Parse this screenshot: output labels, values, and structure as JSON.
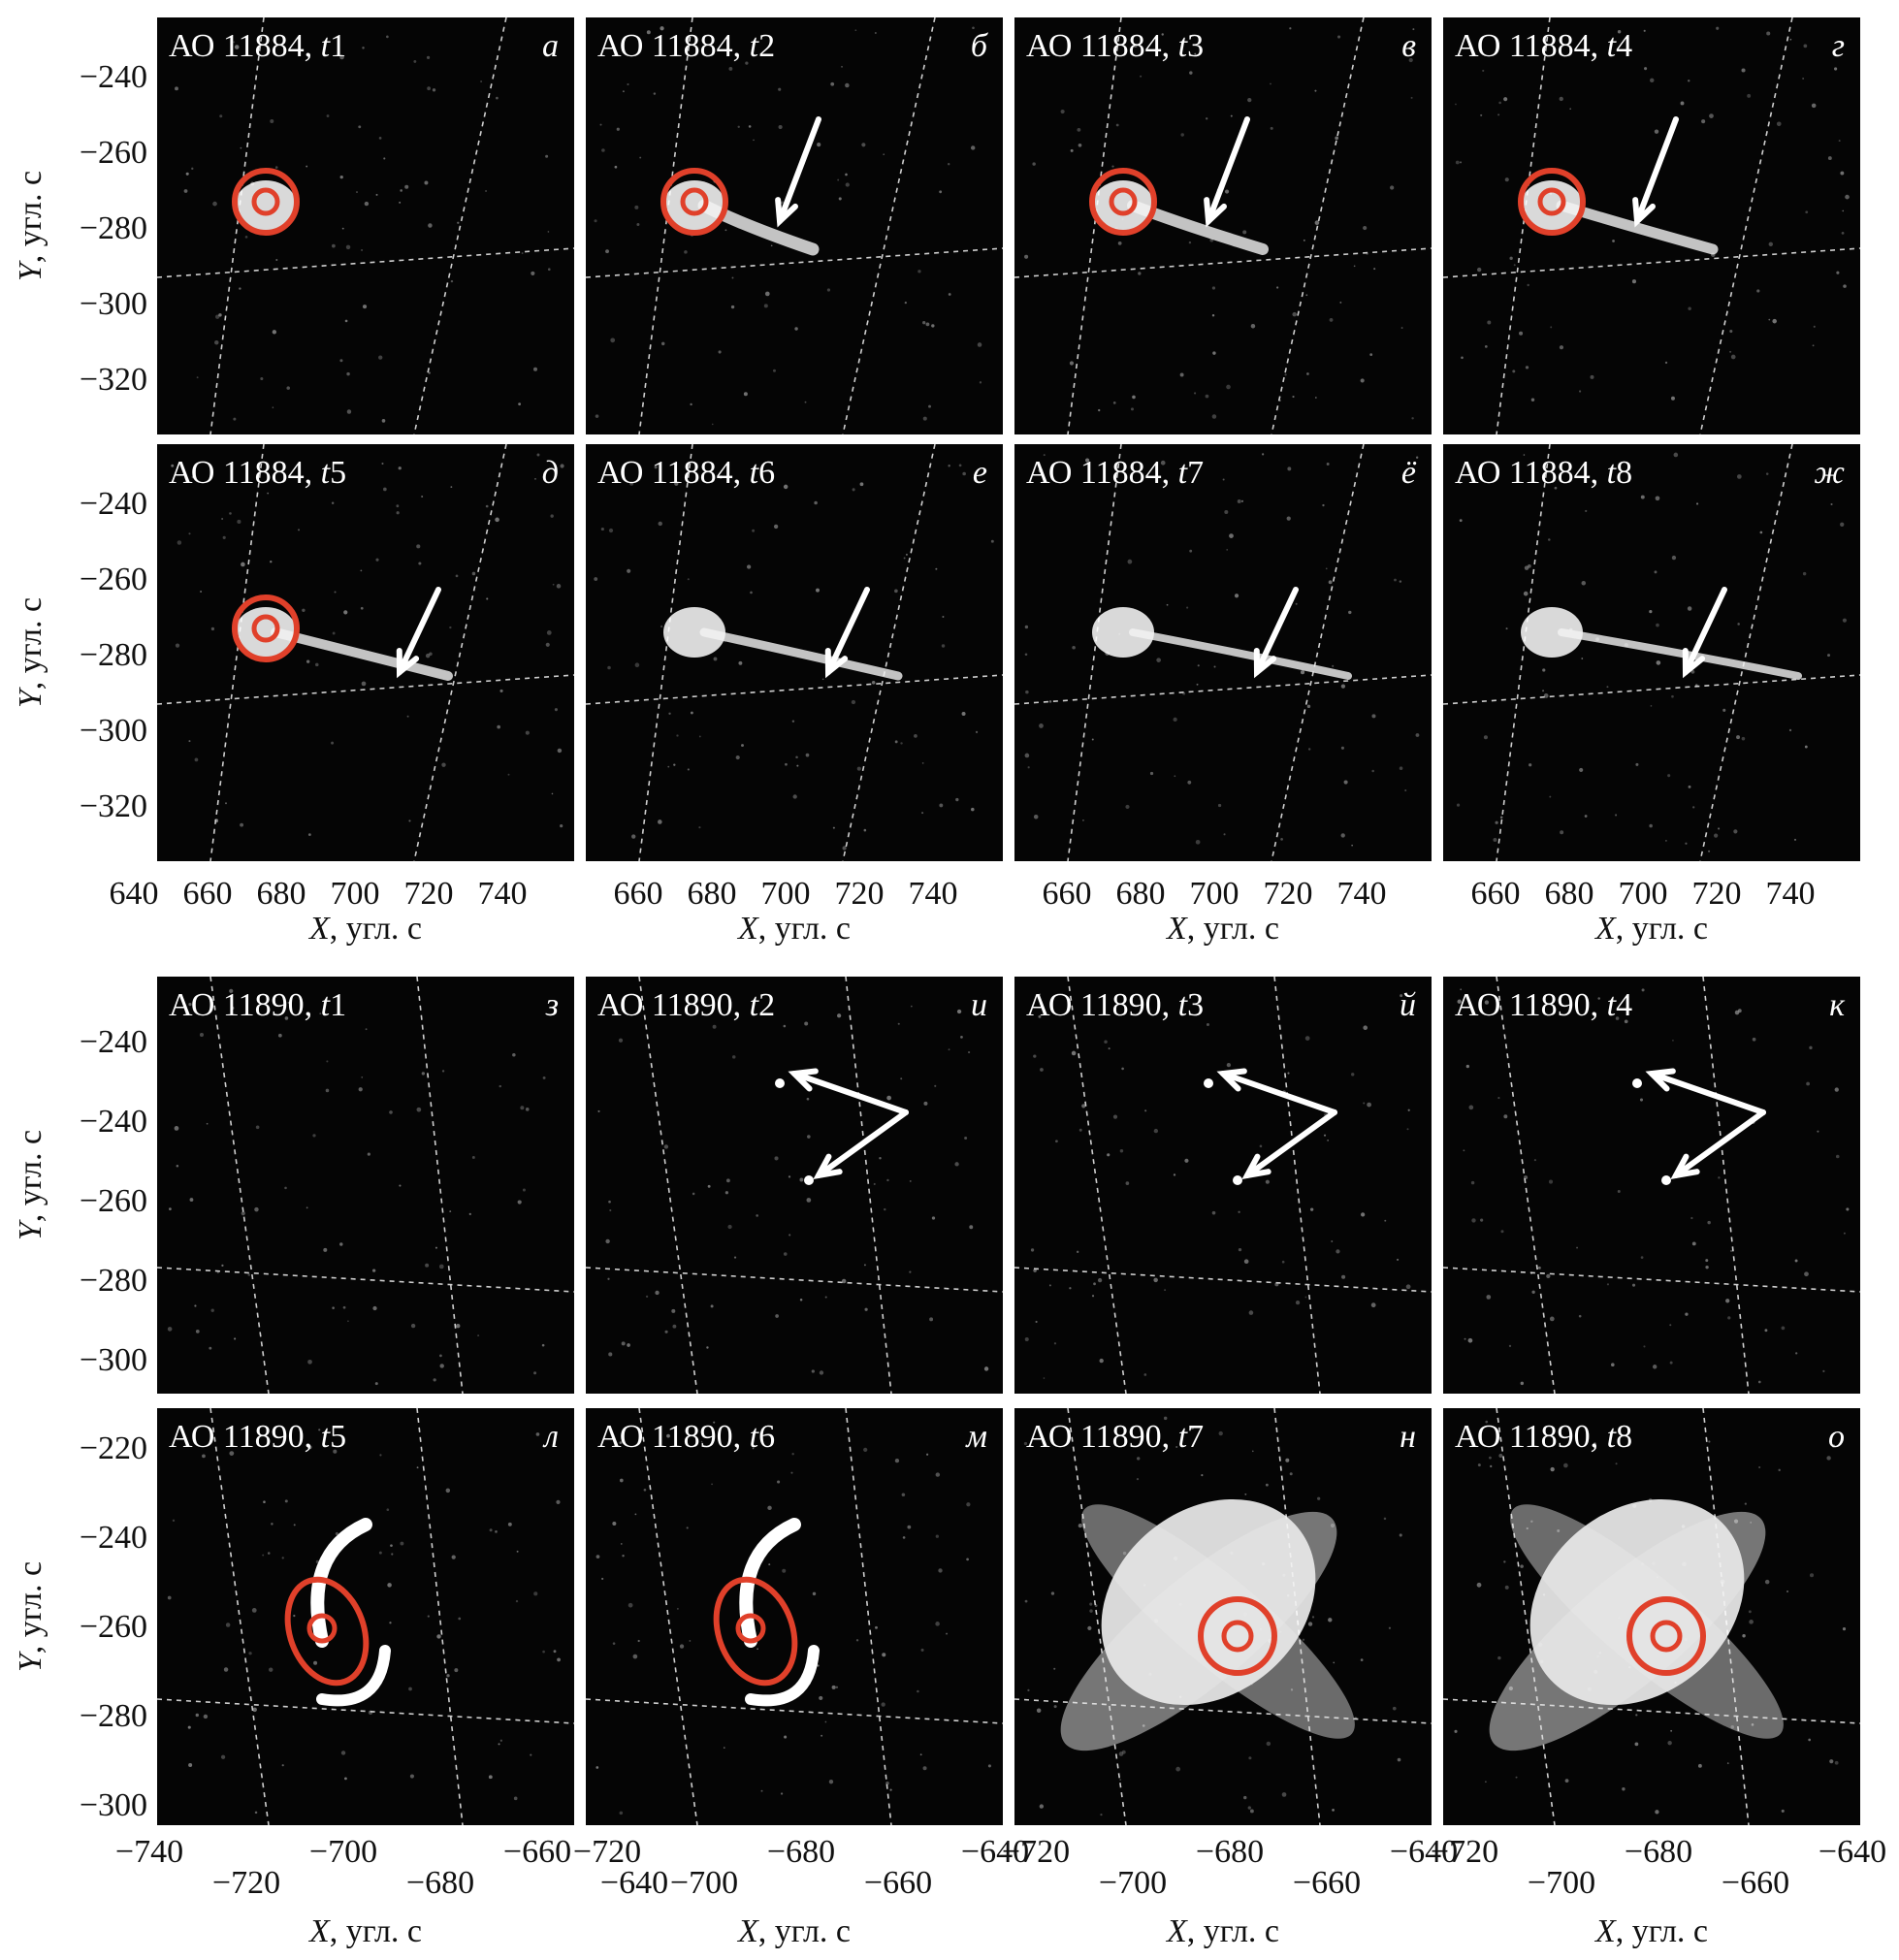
{
  "figure": {
    "top_block": {
      "panels": [
        {
          "title": "АО 11884, ",
          "t": "t",
          "tnum": "1",
          "letter": "а",
          "marker": "circle",
          "arrow": "none"
        },
        {
          "title": "АО 11884, ",
          "t": "t",
          "tnum": "2",
          "letter": "б",
          "marker": "circle",
          "arrow": "down-left"
        },
        {
          "title": "АО 11884, ",
          "t": "t",
          "tnum": "3",
          "letter": "в",
          "marker": "circle",
          "arrow": "down-left"
        },
        {
          "title": "АО 11884, ",
          "t": "t",
          "tnum": "4",
          "letter": "г",
          "marker": "circle",
          "arrow": "down-left"
        },
        {
          "title": "АО 11884, ",
          "t": "t",
          "tnum": "5",
          "letter": "д",
          "marker": "circle",
          "arrow": "down-left"
        },
        {
          "title": "АО 11884, ",
          "t": "t",
          "tnum": "6",
          "letter": "е",
          "marker": "none",
          "arrow": "down-left"
        },
        {
          "title": "АО 11884, ",
          "t": "t",
          "tnum": "7",
          "letter": "ё",
          "marker": "none",
          "arrow": "down-left"
        },
        {
          "title": "АО 11884, ",
          "t": "t",
          "tnum": "8",
          "letter": "ж",
          "marker": "none",
          "arrow": "down-left"
        }
      ],
      "y_ticks": [
        "−240",
        "−260",
        "−280",
        "−300",
        "−320"
      ],
      "x_ticks_first": [
        "640",
        "660",
        "680",
        "700",
        "720",
        "740"
      ],
      "x_ticks_other": [
        "660",
        "680",
        "700",
        "720",
        "740"
      ],
      "y_label_var": "Y",
      "y_label_unit": ", угл. с",
      "x_label_var": "X",
      "x_label_unit": ", угл. с"
    },
    "bottom_block": {
      "panels": [
        {
          "title": "АО 11890, ",
          "t": "t",
          "tnum": "1",
          "letter": "з",
          "marker": "none",
          "arrow": "none"
        },
        {
          "title": "АО 11890, ",
          "t": "t",
          "tnum": "2",
          "letter": "и",
          "marker": "none",
          "arrow": "double"
        },
        {
          "title": "АО 11890, ",
          "t": "t",
          "tnum": "3",
          "letter": "й",
          "marker": "none",
          "arrow": "double"
        },
        {
          "title": "АО 11890, ",
          "t": "t",
          "tnum": "4",
          "letter": "к",
          "marker": "none",
          "arrow": "double"
        },
        {
          "title": "АО 11890, ",
          "t": "t",
          "tnum": "5",
          "letter": "л",
          "marker": "ellipse",
          "arrow": "none"
        },
        {
          "title": "АО 11890, ",
          "t": "t",
          "tnum": "6",
          "letter": "м",
          "marker": "ellipse",
          "arrow": "none"
        },
        {
          "title": "АО 11890, ",
          "t": "t",
          "tnum": "7",
          "letter": "н",
          "marker": "circle",
          "arrow": "none"
        },
        {
          "title": "АО 11890, ",
          "t": "t",
          "tnum": "8",
          "letter": "о",
          "marker": "circle",
          "arrow": "none"
        }
      ],
      "y_ticks_row1": [
        "−240",
        "−240",
        "−260",
        "−280",
        "−300"
      ],
      "y_ticks_row2": [
        "−220",
        "−240",
        "−260",
        "−280",
        "−300"
      ],
      "x_ticks_upper": [
        [
          "−740",
          "−700",
          "−660"
        ],
        [
          "−720",
          "−680",
          "−640"
        ],
        [
          "−720",
          "−680",
          "−640"
        ],
        [
          "−720",
          "−680",
          "−640"
        ]
      ],
      "x_ticks_lower": [
        [
          "−720",
          "−680",
          "−640"
        ],
        [
          "−700",
          "−660"
        ],
        [
          "−700",
          "−660"
        ],
        [
          "−700",
          "−660"
        ]
      ],
      "y_label_var": "Y",
      "y_label_unit": ", угл. с",
      "x_label_var": "X",
      "x_label_unit": ", угл. с"
    },
    "colors": {
      "marker": "#e0402a",
      "arrow": "#ffffff",
      "panel_bg": "#050505",
      "grid": "#cfcfcf"
    }
  }
}
